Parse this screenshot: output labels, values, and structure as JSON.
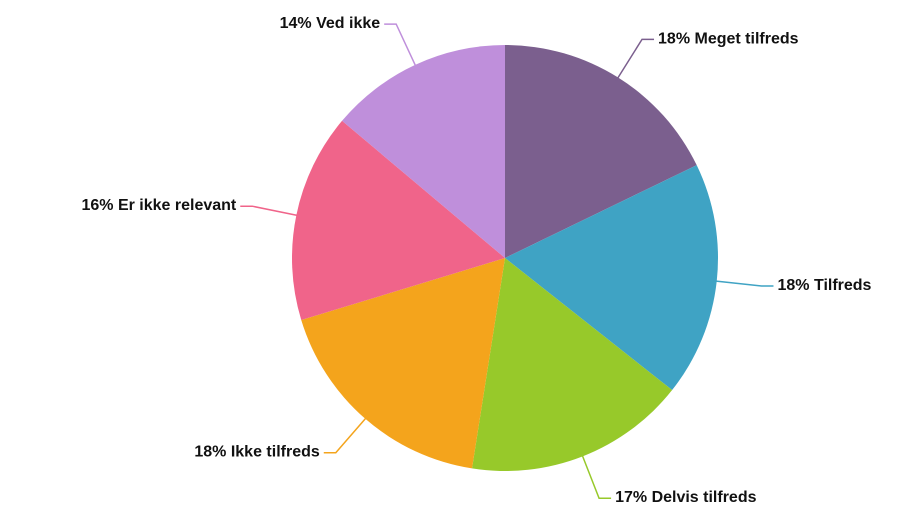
{
  "chart_data": {
    "type": "pie",
    "categories": [
      "Meget tilfreds",
      "Tilfreds",
      "Delvis tilfreds",
      "Ikke tilfreds",
      "Er ikke relevant",
      "Ved ikke"
    ],
    "values": [
      18,
      18,
      17,
      18,
      16,
      14
    ],
    "value_labels": [
      "18%",
      "18%",
      "17%",
      "18%",
      "16%",
      "14%"
    ],
    "colors": [
      "#7b5f8e",
      "#3fa3c4",
      "#97c92a",
      "#f4a41c",
      "#f0648a",
      "#bf8fdb"
    ]
  }
}
